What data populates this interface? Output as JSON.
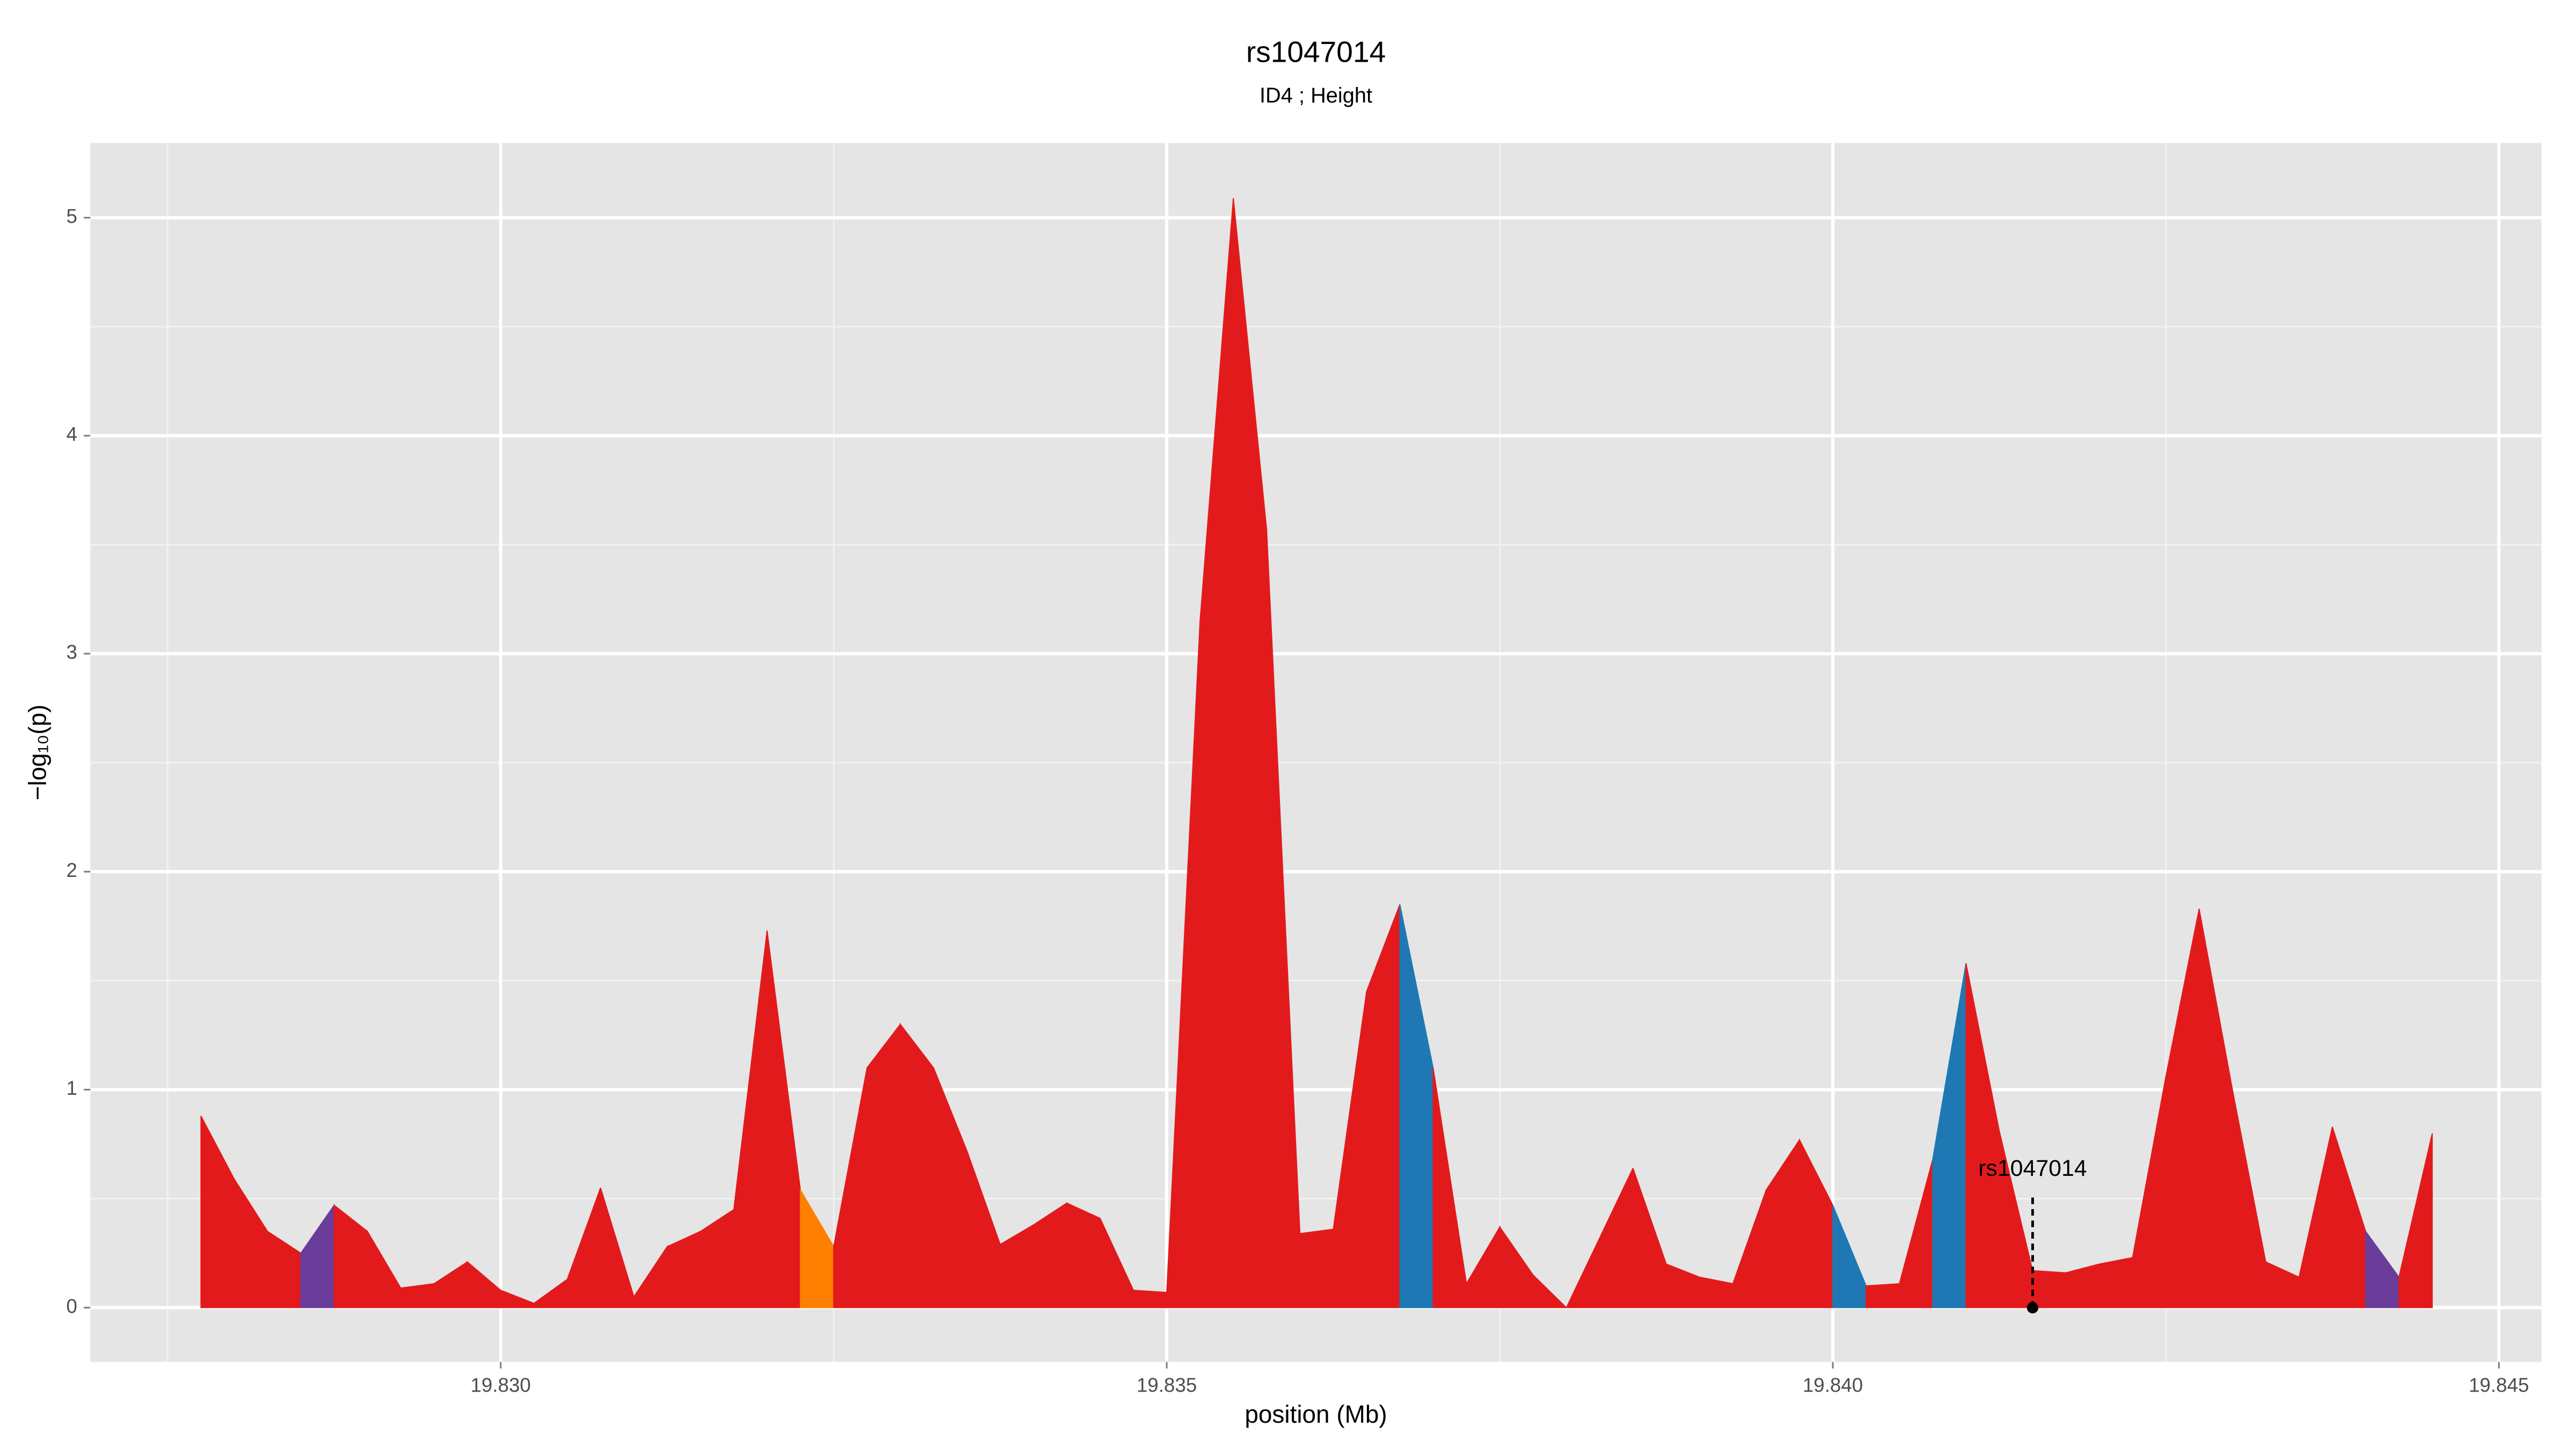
{
  "chart_data": {
    "type": "area",
    "title": "rs1047014",
    "subtitle": "ID4 ; Height",
    "xlabel": "position (Mb)",
    "ylabel": "−log₁₀(p)",
    "x": [
      19.82775,
      19.828,
      19.82825,
      19.8285,
      19.82875,
      19.829,
      19.82925,
      19.8295,
      19.82975,
      19.83,
      19.83025,
      19.8305,
      19.83075,
      19.831,
      19.83125,
      19.8315,
      19.83175,
      19.832,
      19.83225,
      19.8325,
      19.83275,
      19.833,
      19.83325,
      19.8335,
      19.83375,
      19.834,
      19.83425,
      19.8345,
      19.83475,
      19.835,
      19.83525,
      19.8355,
      19.83575,
      19.836,
      19.83625,
      19.8365,
      19.83675,
      19.837,
      19.83725,
      19.8375,
      19.83775,
      19.838,
      19.83825,
      19.8385,
      19.83875,
      19.839,
      19.83925,
      19.8395,
      19.83975,
      19.84,
      19.84025,
      19.8405,
      19.84075,
      19.841,
      19.84125,
      19.8415,
      19.84175,
      19.842,
      19.84225,
      19.8425,
      19.84275,
      19.843,
      19.84325,
      19.8435,
      19.84375,
      19.844,
      19.84425,
      19.8445
    ],
    "values": [
      0.88,
      0.59,
      0.35,
      0.25,
      0.47,
      0.35,
      0.09,
      0.11,
      0.21,
      0.08,
      0.02,
      0.13,
      0.55,
      0.05,
      0.28,
      0.35,
      0.45,
      1.73,
      0.54,
      0.28,
      1.1,
      1.3,
      1.1,
      0.72,
      0.29,
      0.38,
      0.48,
      0.41,
      0.08,
      0.07,
      3.15,
      5.09,
      3.57,
      0.34,
      0.36,
      1.45,
      1.85,
      1.1,
      0.11,
      0.37,
      0.15,
      0.0,
      0.32,
      0.64,
      0.2,
      0.14,
      0.11,
      0.54,
      0.77,
      0.47,
      0.1,
      0.11,
      0.68,
      1.58,
      0.81,
      0.17,
      0.16,
      0.2,
      0.23,
      1.06,
      1.83,
      1.0,
      0.21,
      0.14,
      0.83,
      0.35,
      0.14,
      0.8
    ],
    "segment_colors": [
      "#e31a1c",
      "#e31a1c",
      "#e31a1c",
      "#6a3d9a",
      "#e31a1c",
      "#e31a1c",
      "#e31a1c",
      "#e31a1c",
      "#e31a1c",
      "#e31a1c",
      "#e31a1c",
      "#e31a1c",
      "#e31a1c",
      "#e31a1c",
      "#e31a1c",
      "#e31a1c",
      "#e31a1c",
      "#e31a1c",
      "#ff7f00",
      "#e31a1c",
      "#e31a1c",
      "#e31a1c",
      "#e31a1c",
      "#e31a1c",
      "#e31a1c",
      "#e31a1c",
      "#e31a1c",
      "#e31a1c",
      "#e31a1c",
      "#e31a1c",
      "#e31a1c",
      "#e31a1c",
      "#e31a1c",
      "#e31a1c",
      "#e31a1c",
      "#e31a1c",
      "#1f78b4",
      "#e31a1c",
      "#e31a1c",
      "#e31a1c",
      "#e31a1c",
      "#e31a1c",
      "#e31a1c",
      "#e31a1c",
      "#e31a1c",
      "#e31a1c",
      "#e31a1c",
      "#e31a1c",
      "#e31a1c",
      "#1f78b4",
      "#e31a1c",
      "#e31a1c",
      "#1f78b4",
      "#e31a1c",
      "#e31a1c",
      "#e31a1c",
      "#e31a1c",
      "#e31a1c",
      "#e31a1c",
      "#e31a1c",
      "#e31a1c",
      "#e31a1c",
      "#e31a1c",
      "#e31a1c",
      "#e31a1c",
      "#6a3d9a",
      "#e31a1c"
    ],
    "annotation": {
      "text": "rs1047014",
      "x": 19.8415,
      "y": 0
    },
    "xlim": [
      19.82692,
      19.84532
    ],
    "ylim": [
      -0.249,
      5.343
    ],
    "xticks": [
      {
        "value": 19.83,
        "label": "19.830"
      },
      {
        "value": 19.835,
        "label": "19.835"
      },
      {
        "value": 19.84,
        "label": "19.840"
      },
      {
        "value": 19.845,
        "label": "19.845"
      }
    ],
    "x_minor_ticks": [
      19.8275,
      19.8325,
      19.8375,
      19.8425
    ],
    "yticks": [
      0,
      1,
      2,
      3,
      4,
      5
    ],
    "y_minor_ticks": [
      0.5,
      1.5,
      2.5,
      3.5,
      4.5
    ],
    "grid": true
  }
}
